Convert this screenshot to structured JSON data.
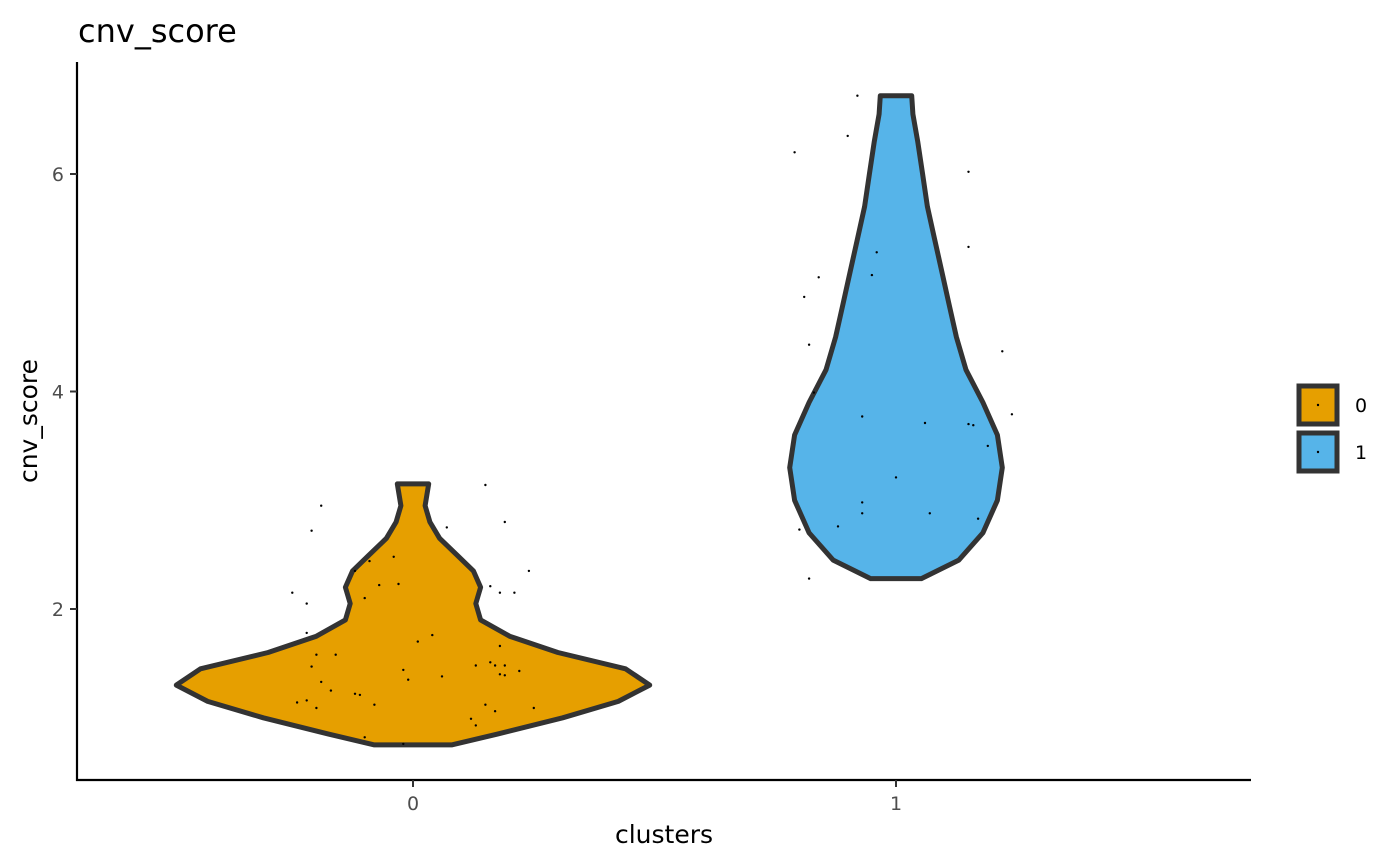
{
  "chart_data": {
    "type": "violin",
    "title": "cnv_score",
    "xlabel": "clusters",
    "ylabel": "cnv_score",
    "categories": [
      "0",
      "1"
    ],
    "ylim": [
      0.58,
      7.0
    ],
    "yticks": [
      2,
      4,
      6
    ],
    "grid": false,
    "legend": {
      "position": "right",
      "entries": [
        {
          "label": "0",
          "color": "#E69F00"
        },
        {
          "label": "1",
          "color": "#56B4E9"
        }
      ]
    },
    "series": [
      {
        "category": "0",
        "color": "#E69F00",
        "min": 0.75,
        "max": 3.15,
        "density": [
          {
            "y": 0.75,
            "w": 0.16
          },
          {
            "y": 0.85,
            "w": 0.35
          },
          {
            "y": 1.0,
            "w": 0.62
          },
          {
            "y": 1.15,
            "w": 0.85
          },
          {
            "y": 1.3,
            "w": 0.98
          },
          {
            "y": 1.45,
            "w": 0.88
          },
          {
            "y": 1.6,
            "w": 0.6
          },
          {
            "y": 1.75,
            "w": 0.4
          },
          {
            "y": 1.9,
            "w": 0.28
          },
          {
            "y": 2.05,
            "w": 0.26
          },
          {
            "y": 2.2,
            "w": 0.28
          },
          {
            "y": 2.35,
            "w": 0.25
          },
          {
            "y": 2.5,
            "w": 0.18
          },
          {
            "y": 2.65,
            "w": 0.11
          },
          {
            "y": 2.8,
            "w": 0.07
          },
          {
            "y": 2.95,
            "w": 0.05
          },
          {
            "y": 3.15,
            "w": 0.065
          }
        ],
        "points": [
          [
            -0.19,
            2.95
          ],
          [
            -0.21,
            2.72
          ],
          [
            -0.25,
            2.15
          ],
          [
            -0.22,
            2.05
          ],
          [
            -0.12,
            2.35
          ],
          [
            -0.1,
            2.1
          ],
          [
            -0.09,
            2.44
          ],
          [
            -0.07,
            2.22
          ],
          [
            -0.04,
            2.48
          ],
          [
            -0.03,
            2.23
          ],
          [
            -0.22,
            1.78
          ],
          [
            -0.2,
            1.58
          ],
          [
            -0.16,
            1.58
          ],
          [
            -0.21,
            1.47
          ],
          [
            -0.19,
            1.33
          ],
          [
            -0.17,
            1.25
          ],
          [
            -0.12,
            1.22
          ],
          [
            -0.11,
            1.21
          ],
          [
            -0.08,
            1.12
          ],
          [
            -0.24,
            1.14
          ],
          [
            -0.22,
            1.16
          ],
          [
            -0.2,
            1.09
          ],
          [
            -0.1,
            0.82
          ],
          [
            -0.02,
            0.76
          ],
          [
            -0.02,
            1.44
          ],
          [
            -0.01,
            1.35
          ],
          [
            0.01,
            1.7
          ],
          [
            0.04,
            1.76
          ],
          [
            0.06,
            1.38
          ],
          [
            0.07,
            2.75
          ],
          [
            0.13,
            1.48
          ],
          [
            0.12,
            0.99
          ],
          [
            0.13,
            0.93
          ],
          [
            0.15,
            1.12
          ],
          [
            0.17,
            1.06
          ],
          [
            0.16,
            1.51
          ],
          [
            0.17,
            1.48
          ],
          [
            0.18,
            1.66
          ],
          [
            0.19,
            1.48
          ],
          [
            0.18,
            1.4
          ],
          [
            0.19,
            1.39
          ],
          [
            0.22,
            1.43
          ],
          [
            0.16,
            2.21
          ],
          [
            0.18,
            2.15
          ],
          [
            0.21,
            2.15
          ],
          [
            0.24,
            2.35
          ],
          [
            0.25,
            1.09
          ],
          [
            0.19,
            2.8
          ],
          [
            0.15,
            3.14
          ]
        ]
      },
      {
        "category": "1",
        "color": "#56B4E9",
        "min": 2.28,
        "max": 6.72,
        "density": [
          {
            "y": 2.28,
            "w": 0.105
          },
          {
            "y": 2.45,
            "w": 0.26
          },
          {
            "y": 2.7,
            "w": 0.36
          },
          {
            "y": 3.0,
            "w": 0.42
          },
          {
            "y": 3.3,
            "w": 0.44
          },
          {
            "y": 3.6,
            "w": 0.42
          },
          {
            "y": 3.9,
            "w": 0.36
          },
          {
            "y": 4.2,
            "w": 0.29
          },
          {
            "y": 4.5,
            "w": 0.25
          },
          {
            "y": 4.8,
            "w": 0.22
          },
          {
            "y": 5.1,
            "w": 0.19
          },
          {
            "y": 5.4,
            "w": 0.16
          },
          {
            "y": 5.7,
            "w": 0.13
          },
          {
            "y": 6.0,
            "w": 0.11
          },
          {
            "y": 6.3,
            "w": 0.09
          },
          {
            "y": 6.55,
            "w": 0.07
          },
          {
            "y": 6.72,
            "w": 0.065
          }
        ],
        "points": [
          [
            -0.08,
            6.72
          ],
          [
            -0.1,
            6.35
          ],
          [
            -0.21,
            6.2
          ],
          [
            0.15,
            6.02
          ],
          [
            0.15,
            5.33
          ],
          [
            -0.04,
            5.28
          ],
          [
            -0.05,
            5.07
          ],
          [
            -0.16,
            5.05
          ],
          [
            -0.19,
            4.87
          ],
          [
            -0.18,
            4.43
          ],
          [
            0.22,
            4.37
          ],
          [
            -0.17,
            3.99
          ],
          [
            -0.07,
            3.77
          ],
          [
            0.06,
            3.71
          ],
          [
            0.15,
            3.7
          ],
          [
            0.16,
            3.69
          ],
          [
            0.24,
            3.79
          ],
          [
            0.19,
            3.5
          ],
          [
            0.0,
            3.21
          ],
          [
            -0.07,
            2.98
          ],
          [
            -0.07,
            2.88
          ],
          [
            0.07,
            2.88
          ],
          [
            -0.12,
            2.76
          ],
          [
            -0.2,
            2.73
          ],
          [
            0.17,
            2.83
          ],
          [
            -0.18,
            2.28
          ]
        ]
      }
    ]
  }
}
